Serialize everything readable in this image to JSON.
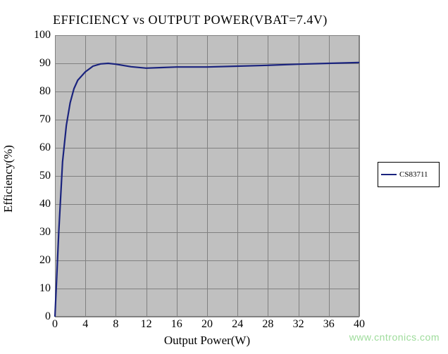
{
  "chart": {
    "type": "line",
    "title": "EFFICIENCY vs OUTPUT POWER(VBAT=7.4V)",
    "xlabel": "Output Power(W)",
    "ylabel": "Efficiency(%)",
    "title_fontsize": 18,
    "label_fontsize": 17,
    "tick_fontsize": 16,
    "background_color": "#ffffff",
    "plot_background_color": "#c0c0c0",
    "grid_color": "#808080",
    "border_color": "#808080",
    "xlim": [
      0,
      40
    ],
    "ylim": [
      0,
      100
    ],
    "xtick_step": 4,
    "ytick_step": 10,
    "xticks": [
      0,
      4,
      8,
      12,
      16,
      20,
      24,
      28,
      32,
      36,
      40
    ],
    "yticks": [
      0,
      10,
      20,
      30,
      40,
      50,
      60,
      70,
      80,
      90,
      100
    ],
    "series": [
      {
        "name": "CS83711",
        "color": "#1a237e",
        "line_width": 2.2,
        "x": [
          0,
          0.5,
          1,
          1.5,
          2,
          2.5,
          3,
          4,
          5,
          6,
          7,
          8,
          10,
          12,
          14,
          16,
          18,
          20,
          24,
          28,
          32,
          36,
          40
        ],
        "y": [
          0,
          30,
          55,
          68,
          76,
          81,
          84,
          87,
          89,
          89.8,
          90,
          89.7,
          88.8,
          88.3,
          88.5,
          88.7,
          88.7,
          88.7,
          89,
          89.3,
          89.7,
          90,
          90.3
        ]
      }
    ],
    "legend": {
      "position": "right",
      "border_color": "#000000",
      "background_color": "#ffffff",
      "fontsize": 11
    }
  },
  "watermark": {
    "text": "www.cntronics.com",
    "color": "#9edc9b",
    "fontsize": 14
  }
}
